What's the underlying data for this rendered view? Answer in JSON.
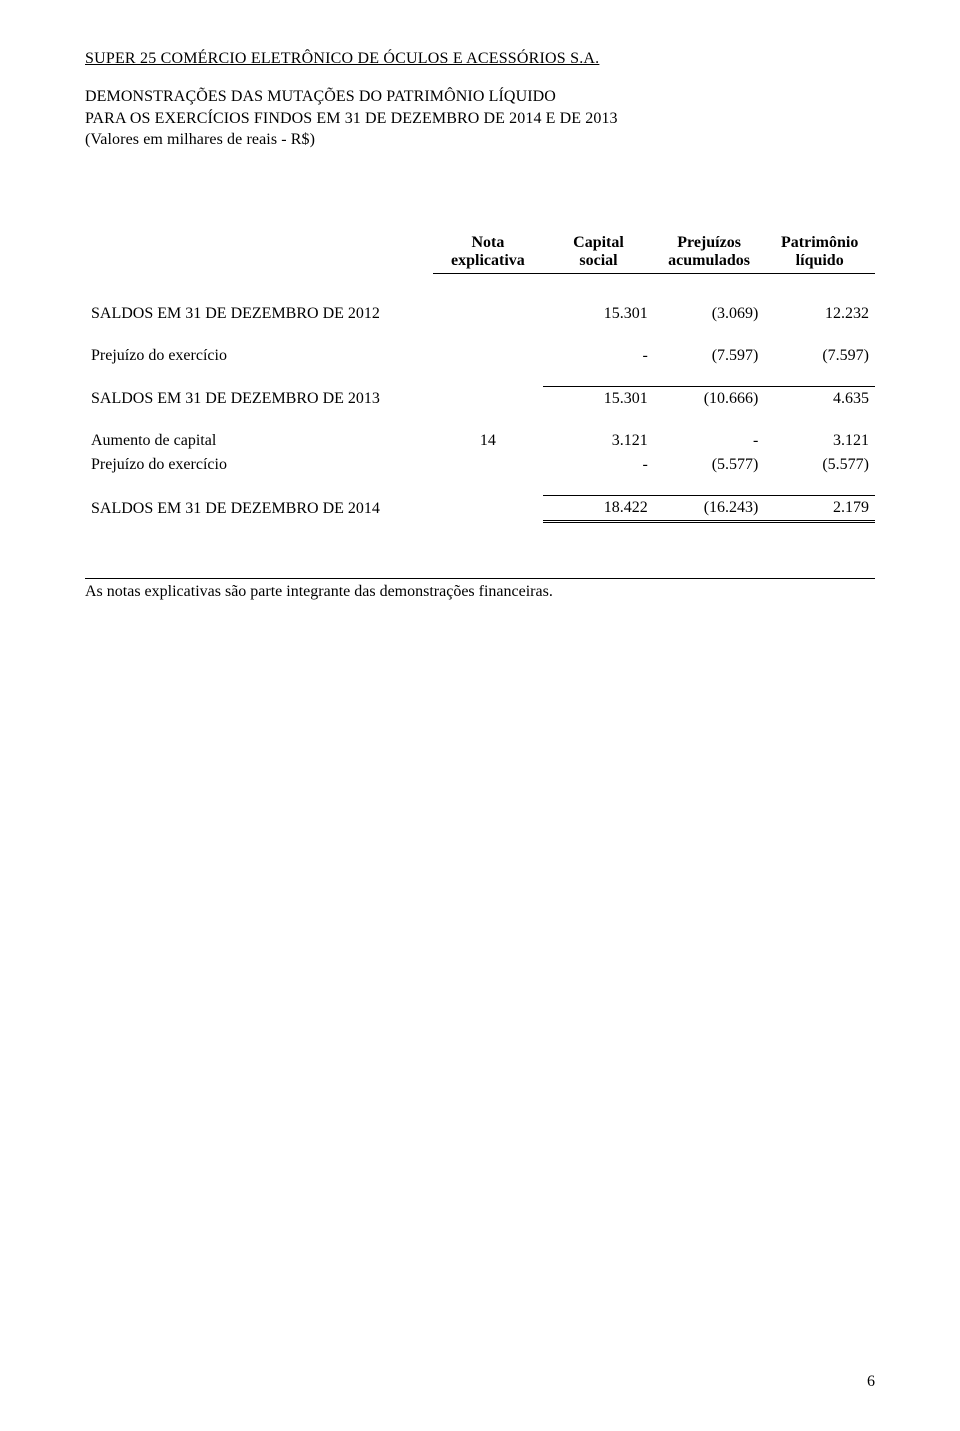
{
  "company": "SUPER 25 COMÉRCIO ELETRÔNICO DE ÓCULOS E ACESSÓRIOS S.A.",
  "head": {
    "line1": "DEMONSTRAÇÕES DAS MUTAÇÕES DO PATRIMÔNIO LÍQUIDO",
    "line2": "PARA OS EXERCÍCIOS FINDOS EM 31 DE DEZEMBRO DE 2014 E DE 2013",
    "line3": "(Valores em milhares de reais - R$)"
  },
  "columns": {
    "note_line1": "Nota",
    "note_line2": "explicativa",
    "cap_line1": "Capital",
    "cap_line2": "social",
    "losses_line1": "Prejuízos",
    "losses_line2": "acumulados",
    "equity_line1": "Patrimônio",
    "equity_line2": "líquido"
  },
  "rows": {
    "saldos2012": {
      "label": "SALDOS EM 31 DE DEZEMBRO DE 2012",
      "note": "",
      "capital": "15.301",
      "losses": "(3.069)",
      "equity": "12.232"
    },
    "prejuizo2013": {
      "label": "Prejuízo do exercício",
      "note": "",
      "capital": "-",
      "losses": "(7.597)",
      "equity": "(7.597)"
    },
    "saldos2013": {
      "label": "SALDOS EM 31 DE DEZEMBRO DE 2013",
      "note": "",
      "capital": "15.301",
      "losses": "(10.666)",
      "equity": "4.635"
    },
    "aumento": {
      "label": "Aumento de capital",
      "note": "14",
      "capital": "3.121",
      "losses": "-",
      "equity": "3.121"
    },
    "prejuizo2014": {
      "label": "Prejuízo do exercício",
      "note": "",
      "capital": "-",
      "losses": "(5.577)",
      "equity": "(5.577)"
    },
    "saldos2014": {
      "label": "SALDOS EM 31 DE DEZEMBRO DE 2014",
      "note": "",
      "capital": "18.422",
      "losses": "(16.243)",
      "equity": "2.179"
    }
  },
  "footnote": "As notas explicativas são parte integrante das demonstrações financeiras.",
  "page_number": "6"
}
